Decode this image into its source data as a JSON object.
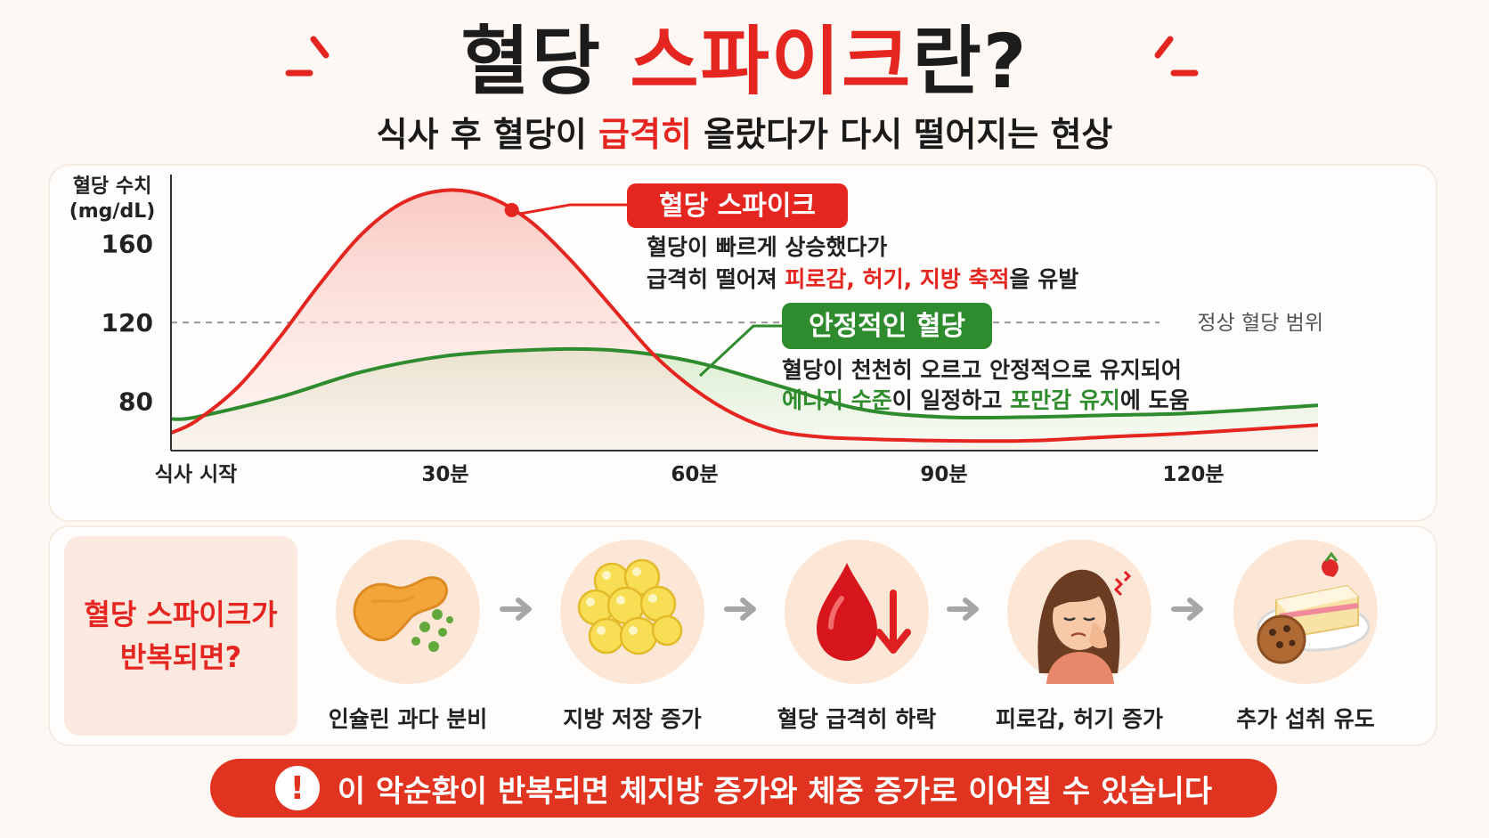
{
  "header": {
    "title_dark": "혈당 ",
    "title_red": "스파이크",
    "title_end": "란?",
    "subtitle_pre": "식사 후 혈당이 ",
    "subtitle_red": "급격히",
    "subtitle_post": " 올랐다가 다시 떨어지는 현상"
  },
  "colors": {
    "red": "#e52520",
    "green": "#2e8b2e",
    "background": "#fdf8f3",
    "peach": "#fce6d6"
  },
  "chart_data": {
    "type": "line",
    "ylabel": "혈당 수치\n(mg/dL)",
    "yticks": [
      160,
      120,
      80
    ],
    "ylim": [
      55,
      195
    ],
    "x_ticks": [
      {
        "label": "식사 시작",
        "x": 0
      },
      {
        "label": "30분",
        "x": 30
      },
      {
        "label": "60분",
        "x": 60
      },
      {
        "label": "90분",
        "x": 90
      },
      {
        "label": "120분",
        "x": 120
      }
    ],
    "xlim": [
      -3,
      135
    ],
    "reference_line": {
      "y": 120,
      "label": "정상 혈당 범위"
    },
    "series": [
      {
        "name": "혈당 스파이크",
        "color": "#e52520",
        "x": [
          -3,
          0,
          5,
          10,
          15,
          20,
          25,
          30,
          35,
          40,
          45,
          50,
          55,
          60,
          65,
          70,
          75,
          80,
          90,
          100,
          110,
          120,
          135
        ],
        "y": [
          64,
          70,
          87,
          112,
          140,
          165,
          181,
          187,
          184,
          172,
          152,
          128,
          104,
          86,
          73,
          65,
          62,
          61,
          60,
          60,
          62,
          64,
          68
        ]
      },
      {
        "name": "안정적인 혈당",
        "color": "#2e8b2e",
        "x": [
          -3,
          0,
          10,
          20,
          30,
          40,
          50,
          60,
          70,
          80,
          90,
          100,
          110,
          120,
          135
        ],
        "y": [
          71,
          72,
          82,
          95,
          103,
          106,
          106,
          100,
          88,
          76,
          72,
          72,
          73,
          74,
          78
        ]
      }
    ],
    "marker": {
      "series": 0,
      "x": 38,
      "y": 177
    },
    "annotations": [
      {
        "badge": "혈당 스파이크",
        "line1": "혈당이 빠르게 상승했다가",
        "line2_pre": "급격히 떨어져 ",
        "line2_red": "피로감, 허기, 지방 축적",
        "line2_post": "을 유발"
      },
      {
        "badge": "안정적인 혈당",
        "line1": "혈당이 천천히 오르고 안정적으로 유지되어",
        "line2_a": "에너지 수준",
        "line2_b": "이 일정하고 ",
        "line2_c": "포만감 유지",
        "line2_d": "에 도움"
      }
    ]
  },
  "flow": {
    "title_line1": "혈당 스파이크가",
    "title_line2": "반복되면?",
    "steps": [
      {
        "label": "인슐린 과다 분비",
        "icon": "pancreas-icon"
      },
      {
        "label": "지방 저장 증가",
        "icon": "fat-cells-icon"
      },
      {
        "label": "혈당 급격히 하락",
        "icon": "blood-drop-down-icon"
      },
      {
        "label": "피로감, 허기 증가",
        "icon": "tired-woman-icon"
      },
      {
        "label": "추가 섭취 유도",
        "icon": "cake-cookie-icon"
      }
    ]
  },
  "warning": {
    "icon": "!",
    "text": "이 악순환이 반복되면 체지방 증가와 체중 증가로 이어질 수 있습니다"
  }
}
